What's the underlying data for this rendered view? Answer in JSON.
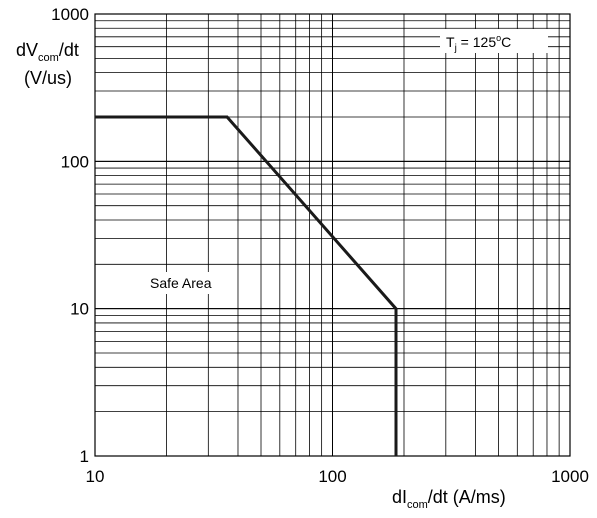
{
  "chart_data": {
    "type": "line",
    "x_scale": "log",
    "y_scale": "log",
    "xlim": [
      10,
      1000
    ],
    "ylim": [
      1,
      1000
    ],
    "grid": true,
    "x_ticks": [
      "10",
      "100",
      "1000"
    ],
    "y_ticks": [
      "1000",
      "100",
      "10",
      "1"
    ],
    "ylabel": {
      "line1_main": "dV",
      "line1_sub": "com",
      "line1_tail": "/dt",
      "line2": "(V/us)"
    },
    "xlabel": {
      "main": "dI",
      "sub": "com",
      "tail": "/dt (A/ms)"
    },
    "annotations": {
      "temperature": {
        "symbol": "T",
        "sub": "j",
        "eq": " = 125",
        "deg": "o",
        "unit": "C"
      },
      "safe_area": "Safe Area"
    },
    "series": [
      {
        "points": [
          [
            10,
            200
          ],
          [
            36,
            200
          ],
          [
            185,
            10
          ],
          [
            185,
            1
          ]
        ]
      }
    ]
  }
}
